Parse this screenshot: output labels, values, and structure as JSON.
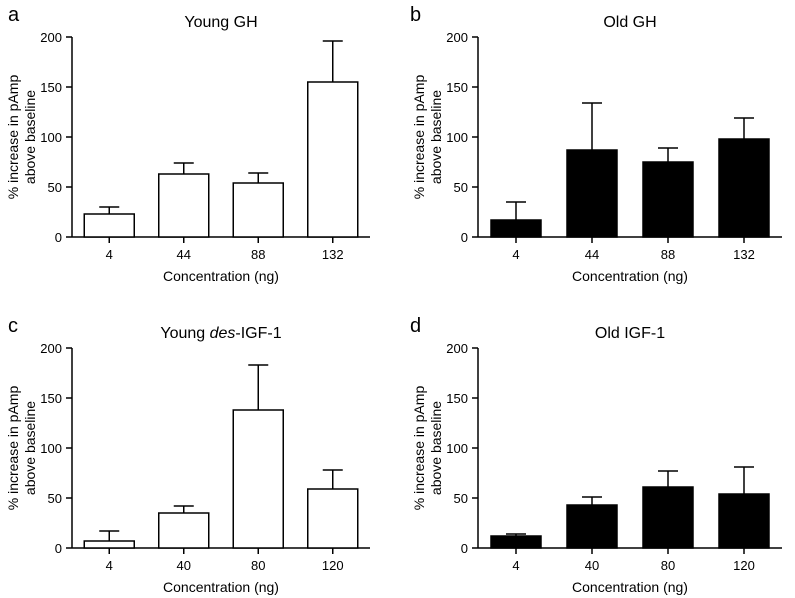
{
  "chart_data": [
    {
      "type": "bar",
      "panel": "a",
      "title": "Young GH",
      "xlabel": "Concentration (ng)",
      "ylabel_lines": [
        "% increase in pAmp",
        "above baseline"
      ],
      "categories": [
        "4",
        "44",
        "88",
        "132"
      ],
      "values": [
        23,
        63,
        54,
        155
      ],
      "errors": [
        7,
        11,
        10,
        41
      ],
      "ylim": [
        0,
        200
      ],
      "yticks": [
        0,
        50,
        100,
        150,
        200
      ],
      "bar_color": "#ffffff"
    },
    {
      "type": "bar",
      "panel": "b",
      "title": "Old GH",
      "xlabel": "Concentration (ng)",
      "ylabel_lines": [
        "% increase in pAmp",
        "above baseline"
      ],
      "categories": [
        "4",
        "44",
        "88",
        "132"
      ],
      "values": [
        17,
        87,
        75,
        98
      ],
      "errors": [
        18,
        47,
        14,
        21
      ],
      "ylim": [
        0,
        200
      ],
      "yticks": [
        0,
        50,
        100,
        150,
        200
      ],
      "bar_color": "#000000"
    },
    {
      "type": "bar",
      "panel": "c",
      "title_parts": [
        "Young ",
        "des",
        "-IGF-1"
      ],
      "xlabel": "Concentration (ng)",
      "ylabel_lines": [
        "% increase in pAmp",
        "above baseline"
      ],
      "categories": [
        "4",
        "40",
        "80",
        "120"
      ],
      "values": [
        7,
        35,
        138,
        59
      ],
      "errors": [
        10,
        7,
        45,
        19
      ],
      "ylim": [
        0,
        200
      ],
      "yticks": [
        0,
        50,
        100,
        150,
        200
      ],
      "bar_color": "#ffffff"
    },
    {
      "type": "bar",
      "panel": "d",
      "title": "Old IGF-1",
      "xlabel": "Concentration (ng)",
      "ylabel_lines": [
        "% increase in pAmp",
        "above baseline"
      ],
      "categories": [
        "4",
        "40",
        "80",
        "120"
      ],
      "values": [
        12,
        43,
        61,
        54
      ],
      "errors": [
        2,
        8,
        16,
        27
      ],
      "ylim": [
        0,
        200
      ],
      "yticks": [
        0,
        50,
        100,
        150,
        200
      ],
      "bar_color": "#000000"
    }
  ]
}
